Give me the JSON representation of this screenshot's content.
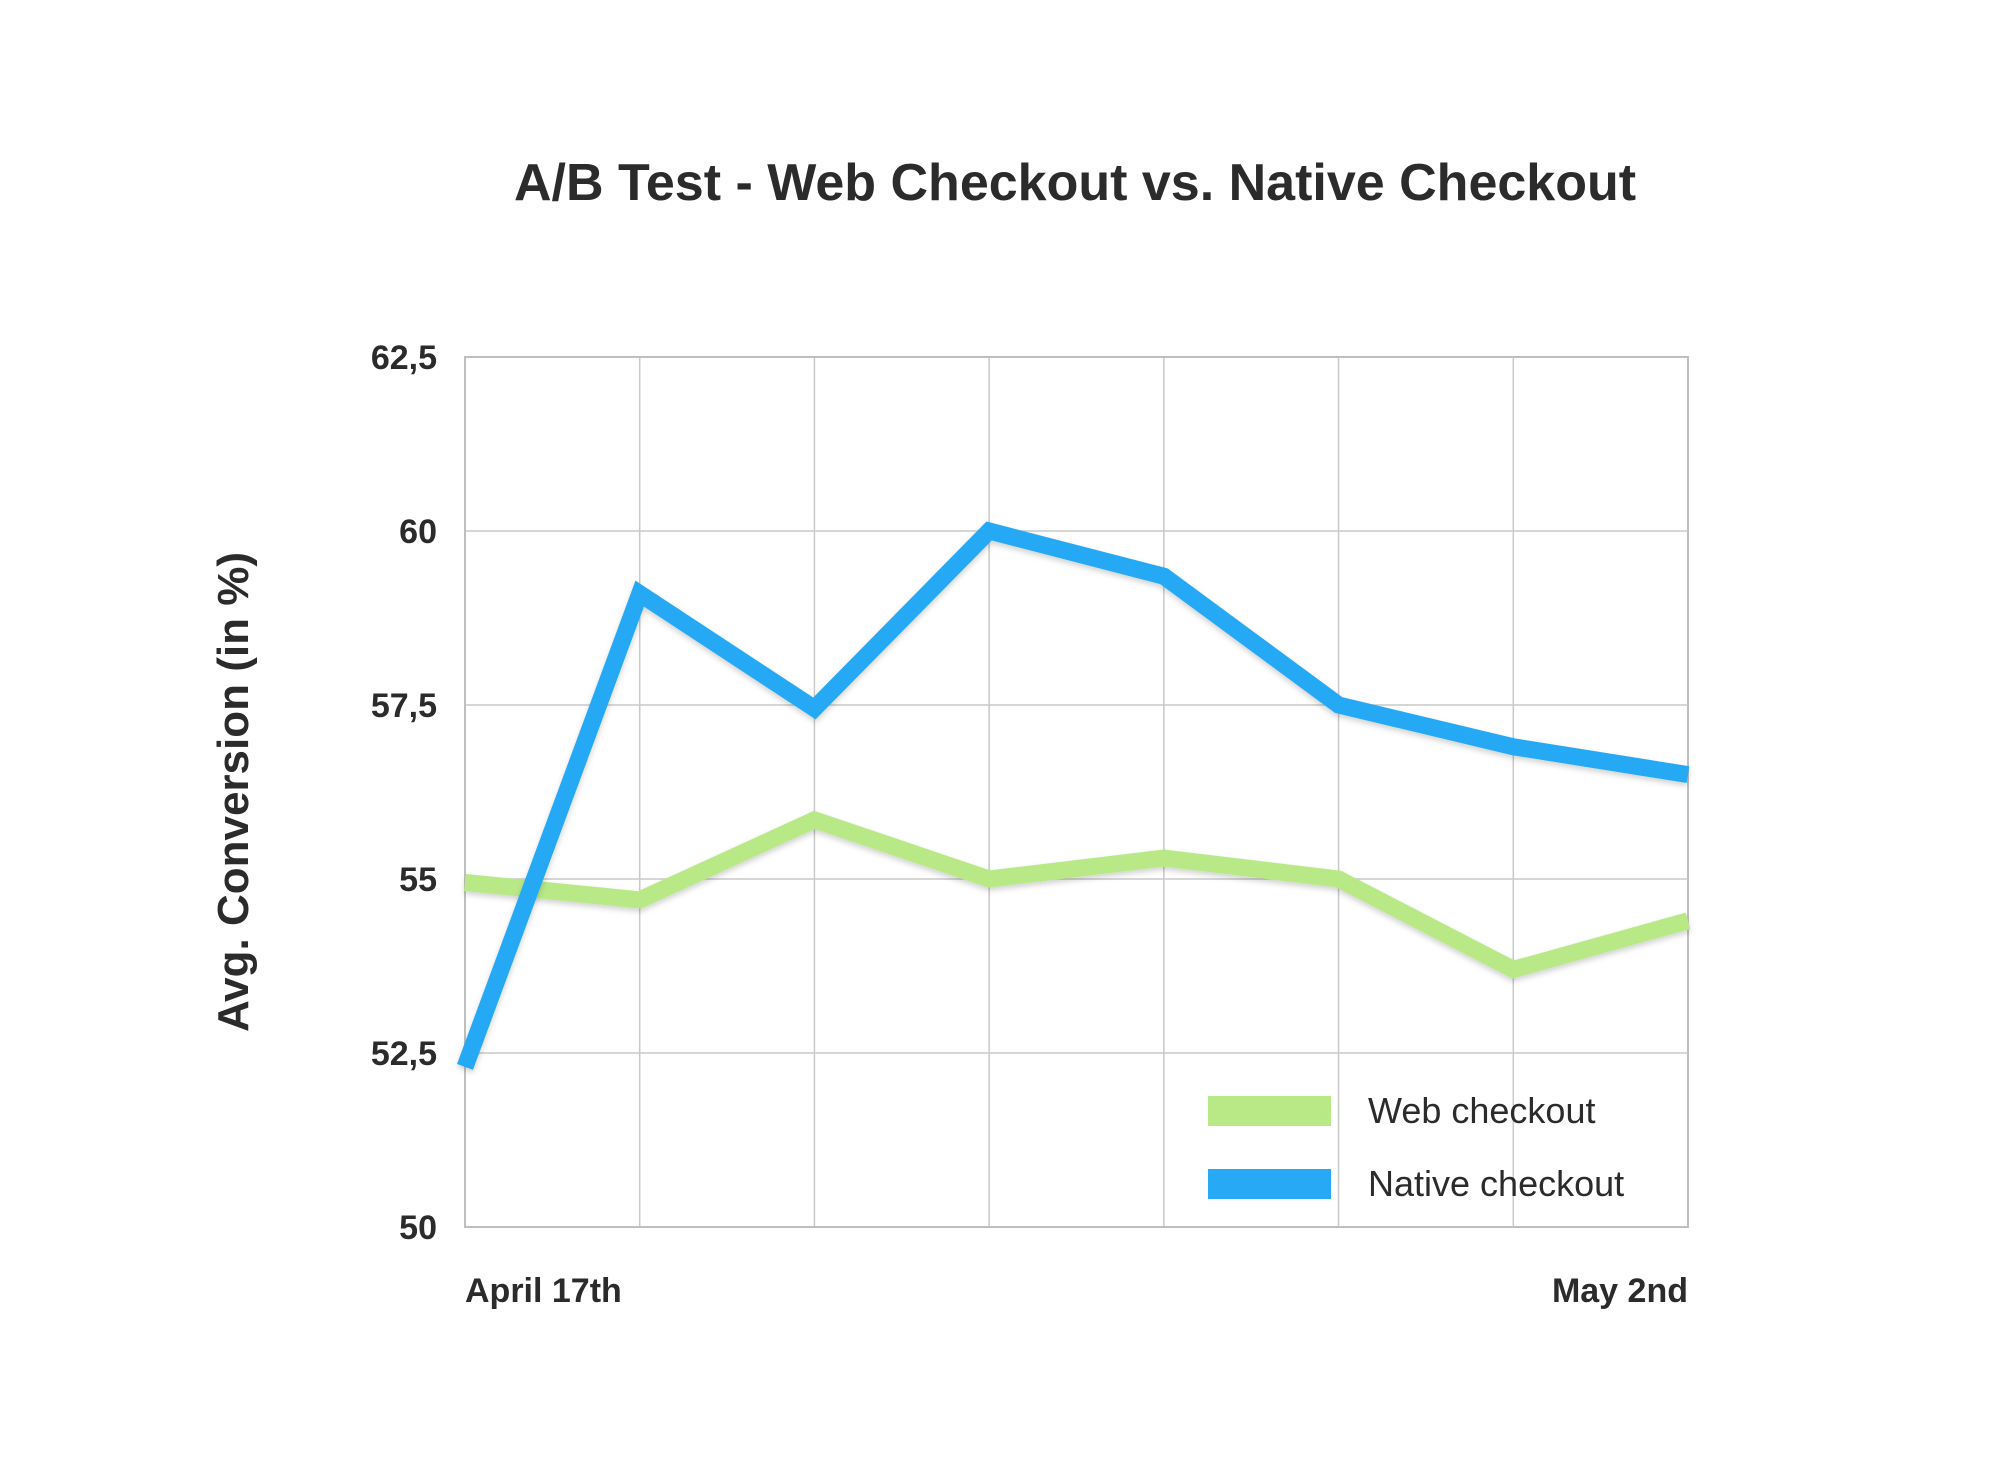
{
  "chart_data": {
    "type": "line",
    "title": "A/B Test - Web Checkout vs. Native Checkout",
    "xlabel": "",
    "ylabel": "Avg. Conversion (in %)",
    "x_tick_labels": [
      "April 17th",
      "",
      "",
      "",
      "",
      "",
      "",
      "May 2nd"
    ],
    "y_tick_labels": [
      "50",
      "52,5",
      "55",
      "57,5",
      "60",
      "62,5"
    ],
    "y_ticks": [
      50,
      52.5,
      55,
      57.5,
      60,
      62.5
    ],
    "ylim": [
      50,
      62.5
    ],
    "grid": true,
    "legend_position": "bottom-right",
    "series": [
      {
        "name": "Web checkout",
        "color": "#b8e986",
        "values": [
          54.95,
          54.7,
          55.85,
          55.0,
          55.3,
          55.0,
          53.7,
          54.4
        ]
      },
      {
        "name": "Native checkout",
        "color": "#27a9f5",
        "values": [
          52.3,
          59.1,
          57.45,
          60.0,
          59.35,
          57.5,
          56.9,
          56.5
        ]
      }
    ]
  }
}
